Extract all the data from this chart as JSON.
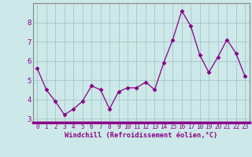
{
  "x": [
    0,
    1,
    2,
    3,
    4,
    5,
    6,
    7,
    8,
    9,
    10,
    11,
    12,
    13,
    14,
    15,
    16,
    17,
    18,
    19,
    20,
    21,
    22,
    23
  ],
  "y": [
    5.6,
    4.5,
    3.9,
    3.2,
    3.5,
    3.9,
    4.7,
    4.5,
    3.5,
    4.4,
    4.6,
    4.6,
    4.9,
    4.5,
    5.9,
    7.1,
    8.6,
    7.8,
    6.3,
    5.4,
    6.2,
    7.1,
    6.4,
    5.2
  ],
  "line_color": "#880088",
  "marker": "D",
  "marker_size": 2.5,
  "bg_color": "#cce8e8",
  "grid_color": "#aacccc",
  "xlabel": "Windchill (Refroidissement éolien,°C)",
  "ylim": [
    2.8,
    9.0
  ],
  "xlim": [
    -0.5,
    23.5
  ],
  "yticks": [
    3,
    4,
    5,
    6,
    7,
    8
  ],
  "xticks": [
    0,
    1,
    2,
    3,
    4,
    5,
    6,
    7,
    8,
    9,
    10,
    11,
    12,
    13,
    14,
    15,
    16,
    17,
    18,
    19,
    20,
    21,
    22,
    23
  ],
  "tick_color": "#880088",
  "spine_color": "#888888",
  "xaxis_bar_color": "#880088",
  "font": "monospace",
  "tick_fontsize": 5.5,
  "ytick_fontsize": 6.5,
  "xlabel_fontsize": 6.2
}
